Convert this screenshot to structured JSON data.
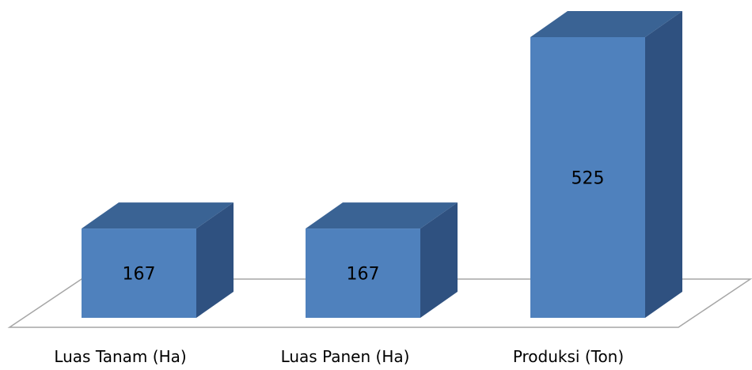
{
  "chart_data": {
    "type": "bar",
    "categories": [
      "Luas Tanam (Ha)",
      "Luas Panen (Ha)",
      "Produksi (Ton)"
    ],
    "values": [
      167,
      167,
      525
    ],
    "data_labels": [
      "167",
      "167",
      "525"
    ],
    "title": "",
    "xlabel": "",
    "ylabel": "",
    "ylim": [
      0,
      525
    ],
    "grid": false,
    "legend": "none",
    "style": "3d-column",
    "colors": {
      "front": "#4f81bd",
      "top": "#3a6394",
      "side": "#2f5180",
      "floor_stroke": "#a6a6a6",
      "text": "#000000"
    }
  }
}
